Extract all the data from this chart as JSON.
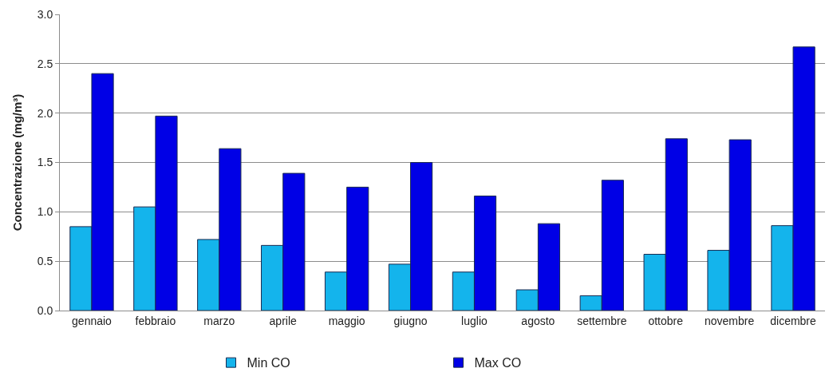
{
  "chart_data": {
    "type": "bar",
    "ylabel": "Concentrazione (mg/m³)",
    "categories": [
      "gennaio",
      "febbraio",
      "marzo",
      "aprile",
      "maggio",
      "giugno",
      "luglio",
      "agosto",
      "settembre",
      "ottobre",
      "novembre",
      "dicembre"
    ],
    "series": [
      {
        "name": "Min CO",
        "color": "#14b4ec",
        "values": [
          0.85,
          1.05,
          0.72,
          0.66,
          0.39,
          0.47,
          0.39,
          0.21,
          0.15,
          0.57,
          0.61,
          0.86
        ]
      },
      {
        "name": "Max CO",
        "color": "#0000e6",
        "values": [
          2.4,
          1.97,
          1.64,
          1.39,
          1.25,
          1.5,
          1.16,
          0.88,
          1.32,
          1.74,
          1.73,
          2.67
        ]
      }
    ],
    "ylim": [
      0,
      3
    ],
    "yticks": [
      {
        "value": 0,
        "label": "0.0"
      },
      0.5,
      {
        "value": 1,
        "label": "1.0"
      },
      1.5,
      {
        "value": 2,
        "label": "2.0"
      },
      2.5,
      {
        "value": 3,
        "label": "3.0"
      }
    ],
    "grid": "y",
    "legend": "bottom"
  }
}
